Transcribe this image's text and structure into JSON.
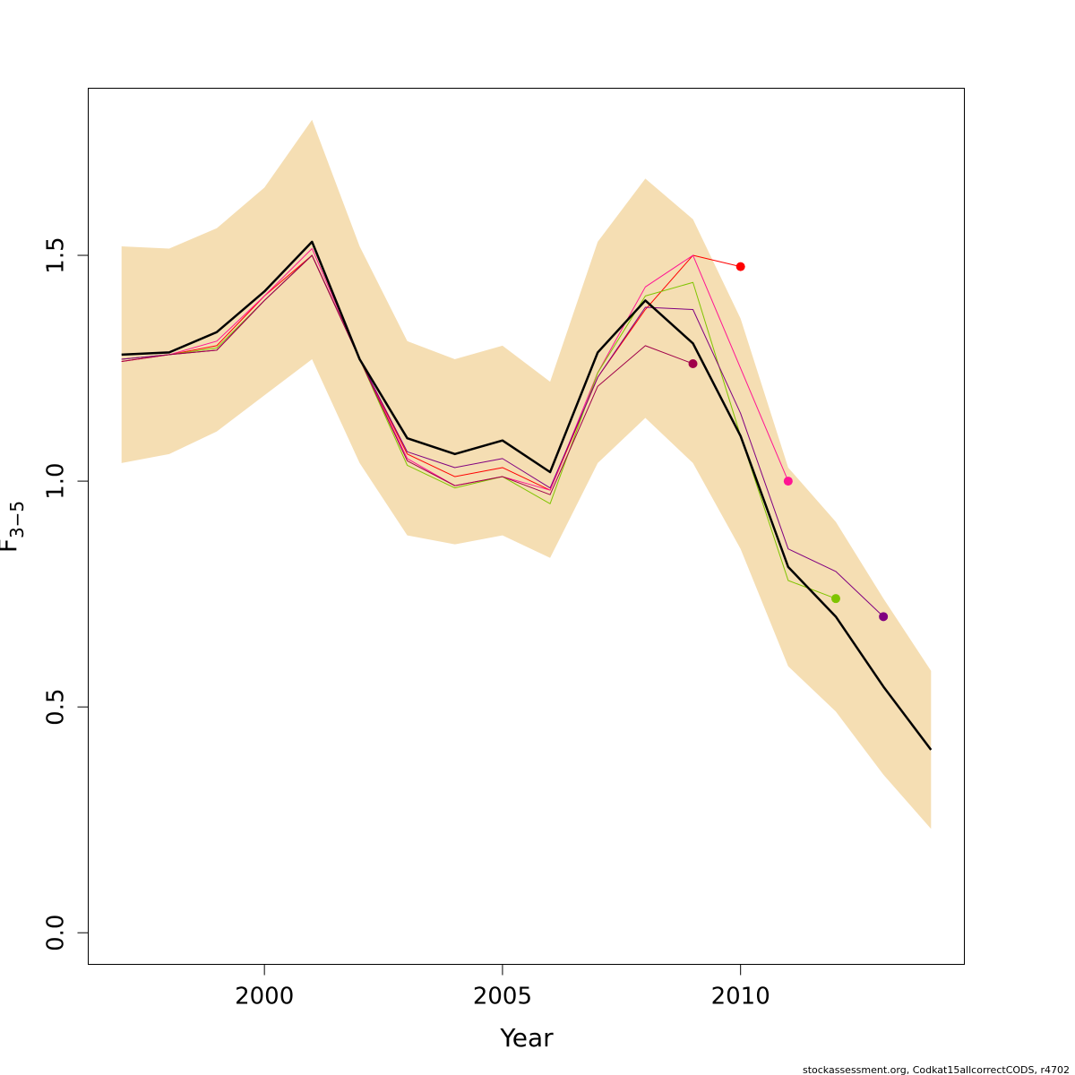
{
  "chart_data": {
    "type": "line",
    "title": "",
    "xlabel": "Year",
    "ylabel_main": "F",
    "ylabel_sub": "3−5",
    "xlim": [
      1996.3,
      2014.7
    ],
    "ylim": [
      -0.07,
      1.87
    ],
    "x_ticks": [
      2000,
      2005,
      2010
    ],
    "x_tick_labels": [
      "2000",
      "2005",
      "2010"
    ],
    "y_ticks": [
      0.0,
      0.5,
      1.0,
      1.5
    ],
    "y_tick_labels": [
      "0.0",
      "0.5",
      "1.0",
      "1.5"
    ],
    "grid": false,
    "legend": "none",
    "confidence_band": {
      "color": "#F5DEB3",
      "x": [
        1997,
        1998,
        1999,
        2000,
        2001,
        2002,
        2003,
        2004,
        2005,
        2006,
        2007,
        2008,
        2009,
        2010,
        2011,
        2012,
        2013,
        2014
      ],
      "lower": [
        1.04,
        1.06,
        1.11,
        1.19,
        1.27,
        1.04,
        0.88,
        0.86,
        0.88,
        0.83,
        1.04,
        1.14,
        1.04,
        0.85,
        0.59,
        0.49,
        0.35,
        0.23
      ],
      "upper": [
        1.52,
        1.515,
        1.56,
        1.65,
        1.8,
        1.52,
        1.31,
        1.27,
        1.3,
        1.22,
        1.53,
        1.67,
        1.58,
        1.36,
        1.03,
        0.91,
        0.74,
        0.58
      ]
    },
    "series": [
      {
        "color": "#000000",
        "width": 2.5,
        "endpoint": false,
        "x": [
          1997,
          1998,
          1999,
          2000,
          2001,
          2002,
          2003,
          2004,
          2005,
          2006,
          2007,
          2008,
          2009,
          2010,
          2011,
          2012,
          2013,
          2014
        ],
        "values": [
          1.28,
          1.285,
          1.33,
          1.42,
          1.53,
          1.27,
          1.095,
          1.06,
          1.09,
          1.02,
          1.285,
          1.4,
          1.305,
          1.1,
          0.81,
          0.7,
          0.545,
          0.405
        ]
      },
      {
        "color": "#FF0000",
        "width": 1,
        "endpoint": true,
        "x": [
          1997,
          1998,
          1999,
          2000,
          2001,
          2002,
          2003,
          2004,
          2005,
          2006,
          2007,
          2008,
          2009,
          2010
        ],
        "values": [
          1.265,
          1.28,
          1.3,
          1.41,
          1.5,
          1.27,
          1.06,
          1.01,
          1.03,
          0.98,
          1.23,
          1.38,
          1.5,
          1.475
        ]
      },
      {
        "color": "#FF1493",
        "width": 1,
        "endpoint": true,
        "x": [
          1997,
          1998,
          1999,
          2000,
          2001,
          2002,
          2003,
          2004,
          2005,
          2006,
          2007,
          2008,
          2009,
          2010,
          2011
        ],
        "values": [
          1.27,
          1.28,
          1.31,
          1.41,
          1.515,
          1.27,
          1.05,
          0.99,
          1.01,
          0.98,
          1.24,
          1.43,
          1.5,
          1.25,
          1.0
        ]
      },
      {
        "color": "#7FC400",
        "width": 1,
        "endpoint": true,
        "x": [
          1997,
          1998,
          1999,
          2000,
          2001,
          2002,
          2003,
          2004,
          2005,
          2006,
          2007,
          2008,
          2009,
          2010,
          2011,
          2012
        ],
        "values": [
          1.27,
          1.28,
          1.295,
          1.4,
          1.5,
          1.27,
          1.035,
          0.985,
          1.01,
          0.95,
          1.24,
          1.41,
          1.44,
          1.1,
          0.78,
          0.74
        ]
      },
      {
        "color": "#800080",
        "width": 1,
        "endpoint": true,
        "x": [
          1997,
          1998,
          1999,
          2000,
          2001,
          2002,
          2003,
          2004,
          2005,
          2006,
          2007,
          2008,
          2009,
          2010,
          2011,
          2012,
          2013
        ],
        "values": [
          1.27,
          1.28,
          1.29,
          1.4,
          1.5,
          1.27,
          1.065,
          1.03,
          1.05,
          0.985,
          1.23,
          1.385,
          1.38,
          1.15,
          0.85,
          0.8,
          0.7
        ]
      },
      {
        "color": "#A0004A",
        "width": 1,
        "endpoint": true,
        "x": [
          1997,
          1998,
          1999,
          2000,
          2001,
          2002,
          2003,
          2004,
          2005,
          2006,
          2007,
          2008,
          2009
        ],
        "values": [
          1.265,
          1.28,
          1.29,
          1.4,
          1.5,
          1.27,
          1.045,
          0.99,
          1.01,
          0.97,
          1.21,
          1.3,
          1.26
        ]
      }
    ],
    "footer_text": "stockassessment.org, Codkat15allcorrectCODS, r4702"
  }
}
